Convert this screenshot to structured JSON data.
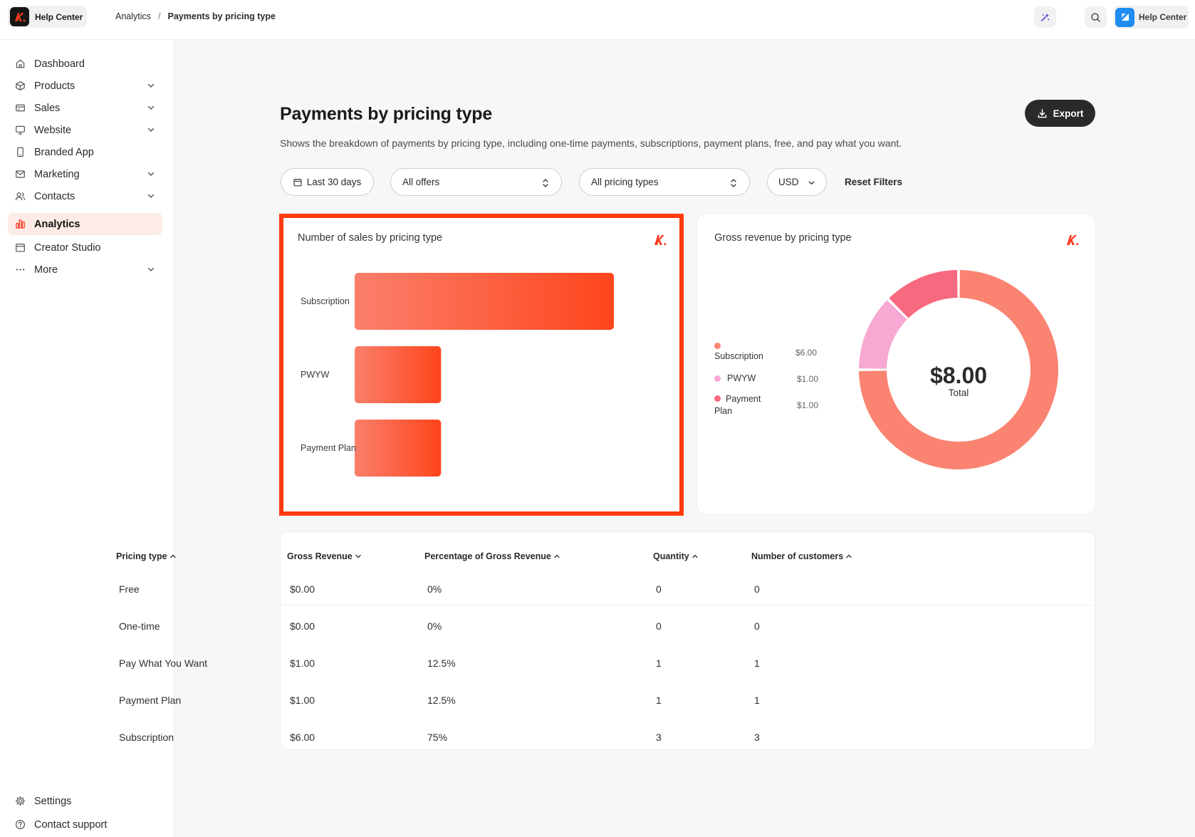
{
  "topbar": {
    "brand_label": "Help Center",
    "breadcrumb": [
      "Analytics",
      "/",
      "Payments by pricing type"
    ],
    "help_label": "Help Center"
  },
  "sidebar": {
    "items": [
      {
        "label": "Dashboard",
        "icon": "home-icon"
      },
      {
        "label": "Products",
        "icon": "box-icon"
      },
      {
        "label": "Sales",
        "icon": "card-icon"
      },
      {
        "label": "Website",
        "icon": "monitor-icon"
      },
      {
        "label": "Branded App",
        "icon": "phone-icon"
      },
      {
        "label": "Marketing",
        "icon": "mail-icon"
      },
      {
        "label": "Contacts",
        "icon": "users-icon"
      },
      {
        "label": "Analytics",
        "icon": "chart-icon"
      },
      {
        "label": "Creator Studio",
        "icon": "calendar-icon"
      },
      {
        "label": "More",
        "icon": "dots-icon"
      }
    ],
    "bottom": [
      {
        "label": "Settings",
        "icon": "gear-icon"
      },
      {
        "label": "Contact support",
        "icon": "help-circle-icon"
      }
    ]
  },
  "page": {
    "title": "Payments by pricing type",
    "description": "Shows the breakdown of payments by pricing type, including one-time payments, subscriptions, payment plans, free, and pay what you want.",
    "export_label": "Export"
  },
  "filters": {
    "date": "Last 30 days",
    "offers": "All offers",
    "pricing": "All pricing types",
    "currency": "USD",
    "reset": "Reset Filters"
  },
  "bar_card": {
    "title": "Number of sales by pricing type"
  },
  "donut_card": {
    "title": "Gross revenue by pricing type",
    "total_value": "$8.00",
    "total_label": "Total",
    "legend": [
      {
        "label": "Subscription",
        "value": "$6.00",
        "color": "#fa8372"
      },
      {
        "label": "PWYW",
        "value": "$1.00",
        "color": "#f7a8d3"
      },
      {
        "label": "Payment Plan",
        "value": "$1.00",
        "color": "#f7697f"
      }
    ]
  },
  "chart_data": [
    {
      "type": "bar",
      "title": "Number of sales by pricing type",
      "categories": [
        "Subscription",
        "PWYW",
        "Payment Plan"
      ],
      "values": [
        3,
        1,
        1
      ],
      "orientation": "horizontal"
    },
    {
      "type": "pie",
      "title": "Gross revenue by pricing type",
      "categories": [
        "Subscription",
        "PWYW",
        "Payment Plan"
      ],
      "values": [
        6.0,
        1.0,
        1.0
      ],
      "colors": [
        "#fa8372",
        "#f7a8d3",
        "#f7697f"
      ],
      "center_label": "$8.00 Total"
    }
  ],
  "table": {
    "headers": [
      {
        "label": "Pricing type",
        "sort": "up"
      },
      {
        "label": "Gross Revenue",
        "sort": "down"
      },
      {
        "label": "Percentage of Gross Revenue",
        "sort": "up"
      },
      {
        "label": "Quantity",
        "sort": "up"
      },
      {
        "label": "Number of customers",
        "sort": "up"
      }
    ],
    "rows": [
      [
        "Free",
        "$0.00",
        "0%",
        "0",
        "0"
      ],
      [
        "One-time",
        "$0.00",
        "0%",
        "0",
        "0"
      ],
      [
        "Pay What You Want",
        "$1.00",
        "12.5%",
        "1",
        "1"
      ],
      [
        "Payment Plan",
        "$1.00",
        "12.5%",
        "1",
        "1"
      ],
      [
        "Subscription",
        "$6.00",
        "75%",
        "3",
        "3"
      ]
    ]
  }
}
